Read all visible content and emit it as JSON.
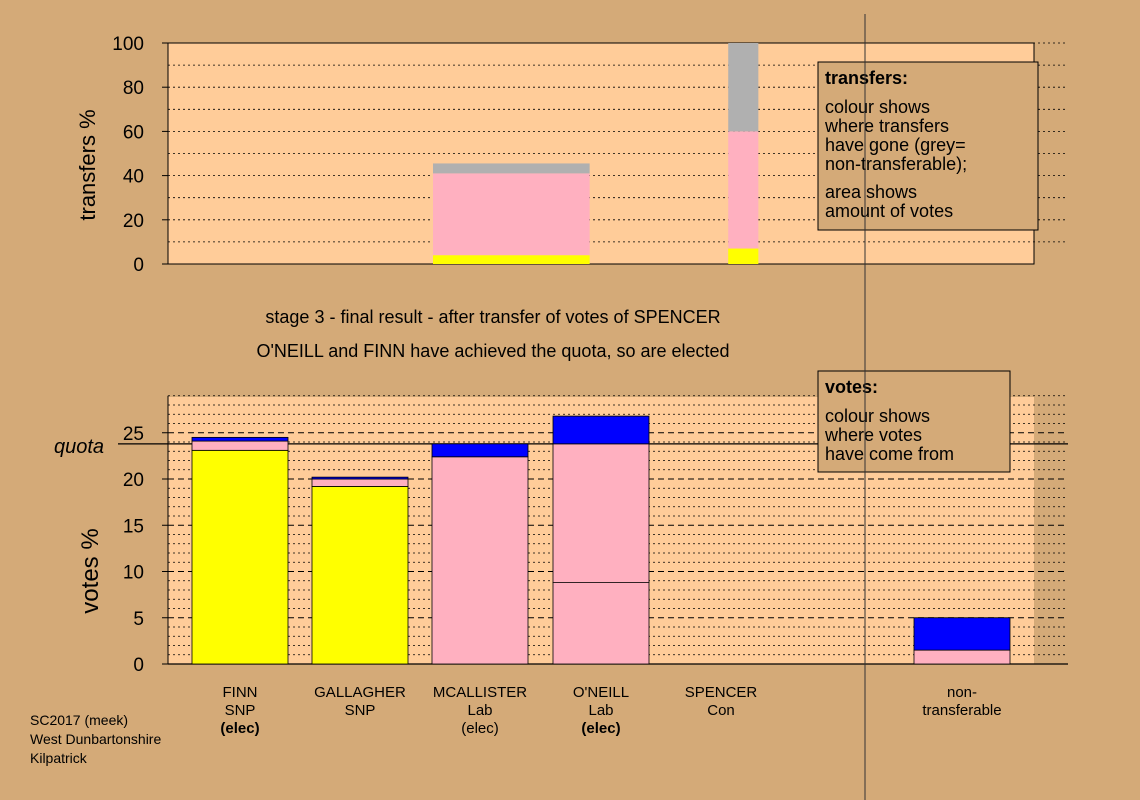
{
  "colors": {
    "background": "#d4aa78",
    "plot_bg": "#ffcc99",
    "snp": "#ffff00",
    "lab": "#ffb0c0",
    "con": "#0000ff",
    "non_transferable": "#b0b0b0"
  },
  "top_chart": {
    "ylabel": "transfers %",
    "yticks": [
      "0",
      "20",
      "40",
      "60",
      "80",
      "100"
    ],
    "legend": {
      "title": "transfers:",
      "lines": [
        "colour shows",
        "where transfers",
        "have gone (grey=",
        "non-transferable);",
        "area shows",
        "amount of votes"
      ]
    }
  },
  "caption": {
    "line1": "stage 3 - final result - after transfer of votes of SPENCER",
    "line2": "O'NEILL and FINN have achieved the quota, so are elected"
  },
  "bottom_chart": {
    "ylabel": "votes %",
    "quota_label": "quota",
    "yticks": [
      "0",
      "5",
      "10",
      "15",
      "20",
      "25"
    ],
    "legend": {
      "title": "votes:",
      "lines": [
        "colour shows",
        "where votes",
        "have come from"
      ]
    }
  },
  "candidates": [
    {
      "name": "FINN",
      "party": "SNP",
      "status": "(elec)",
      "status_bold": true
    },
    {
      "name": "GALLAGHER",
      "party": "SNP",
      "status": "",
      "status_bold": false
    },
    {
      "name": "MCALLISTER",
      "party": "Lab",
      "status": "(elec)",
      "status_bold": false
    },
    {
      "name": "O'NEILL",
      "party": "Lab",
      "status": "(elec)",
      "status_bold": true
    },
    {
      "name": "SPENCER",
      "party": "Con",
      "status": "",
      "status_bold": false
    },
    {
      "name": "non-",
      "party": "transferable",
      "status": "",
      "status_bold": false
    }
  ],
  "footer": [
    "SC2017 (meek)",
    "West Dunbartonshire",
    "Kilpatrick"
  ],
  "chart_data": [
    {
      "type": "bar",
      "stacked": true,
      "ylabel": "transfers %",
      "ylim": [
        0,
        100
      ],
      "bars": [
        {
          "segments": [
            {
              "color": "snp",
              "value": 4
            },
            {
              "color": "lab",
              "value": 37
            },
            {
              "color": "non_transferable",
              "value": 4.5
            }
          ],
          "x0": 2.0,
          "x1": 3.3
        },
        {
          "segments": [
            {
              "color": "snp",
              "value": 7
            },
            {
              "color": "lab",
              "value": 53
            },
            {
              "color": "non_transferable",
              "value": 40
            }
          ],
          "x0": 4.45,
          "x1": 4.7
        }
      ]
    },
    {
      "type": "bar",
      "stacked": true,
      "ylabel": "votes %",
      "ylim": [
        0,
        29
      ],
      "quota": 23.8,
      "categories": [
        "FINN SNP (elec)",
        "GALLAGHER SNP",
        "MCALLISTER Lab (elec)",
        "O'NEILL Lab (elec)",
        "SPENCER Con",
        "non-transferable"
      ],
      "series": [
        {
          "name": "SNP",
          "color": "snp",
          "values": [
            23.1,
            19.2,
            0,
            0,
            0,
            0
          ]
        },
        {
          "name": "Lab",
          "color": "lab",
          "values": [
            1.0,
            0.8,
            22.4,
            8.8,
            0,
            1.5
          ]
        },
        {
          "name": "Lab",
          "color": "lab",
          "values": [
            0,
            0,
            0,
            15.0,
            0,
            0
          ]
        },
        {
          "name": "Con",
          "color": "con",
          "values": [
            0.4,
            0.2,
            1.4,
            3.0,
            0,
            3.5
          ]
        }
      ]
    }
  ]
}
